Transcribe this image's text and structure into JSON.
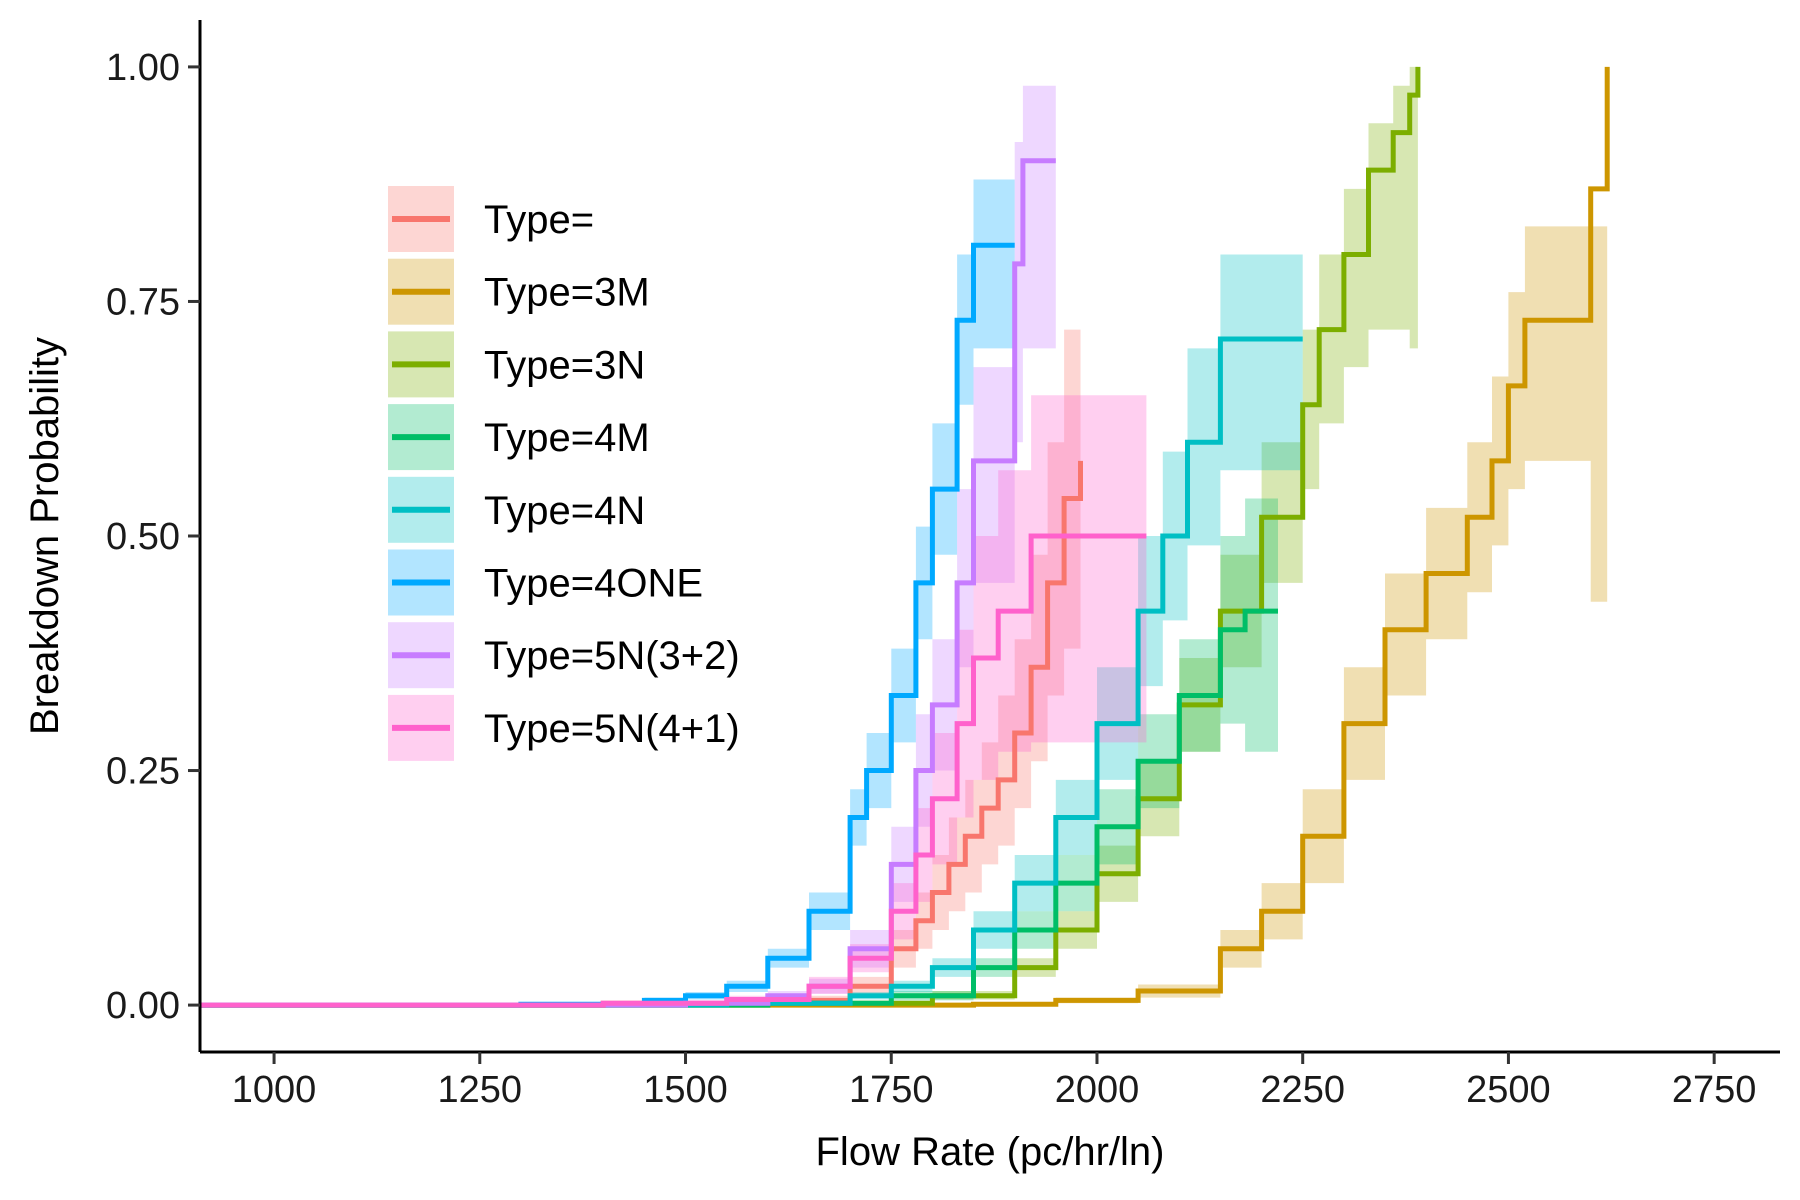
{
  "chart_data": {
    "type": "line",
    "title": "",
    "xlabel": "Flow Rate (pc/hr/ln)",
    "ylabel": "Breakdown Probability",
    "xlim": [
      910,
      2830
    ],
    "ylim": [
      -0.05,
      1.05
    ],
    "x_ticks": [
      1000,
      1250,
      1500,
      1750,
      2000,
      2250,
      2500,
      2750
    ],
    "y_ticks": [
      0,
      0.25,
      0.5,
      0.75,
      1.0
    ],
    "x_tick_labels": [
      "1000",
      "1250",
      "1500",
      "1750",
      "2000",
      "2250",
      "2500",
      "2750"
    ],
    "y_tick_labels": [
      "0.00",
      "0.25",
      "0.50",
      "0.75",
      "1.00"
    ],
    "grid": false,
    "legend_position": "top-left",
    "step": true,
    "series": [
      {
        "name": "Type=",
        "color": "#F8766D",
        "x": [
          910,
          1400,
          1600,
          1700,
          1750,
          1780,
          1800,
          1820,
          1840,
          1860,
          1880,
          1900,
          1920,
          1940,
          1960,
          1980
        ],
        "y": [
          0,
          0.002,
          0.005,
          0.02,
          0.06,
          0.09,
          0.12,
          0.15,
          0.18,
          0.21,
          0.24,
          0.29,
          0.36,
          0.45,
          0.54,
          0.58
        ],
        "lower": [
          0,
          0,
          0.002,
          0.01,
          0.04,
          0.06,
          0.08,
          0.1,
          0.12,
          0.15,
          0.17,
          0.21,
          0.26,
          0.33,
          0.38,
          0.4
        ],
        "upper": [
          0,
          0.004,
          0.01,
          0.03,
          0.08,
          0.12,
          0.16,
          0.2,
          0.24,
          0.28,
          0.33,
          0.39,
          0.48,
          0.6,
          0.72,
          0.75
        ]
      },
      {
        "name": "Type=3M",
        "color": "#CD9600",
        "x": [
          910,
          1850,
          1950,
          2050,
          2150,
          2200,
          2250,
          2300,
          2350,
          2400,
          2450,
          2480,
          2500,
          2520,
          2560,
          2600,
          2610,
          2620
        ],
        "y": [
          0,
          0.001,
          0.005,
          0.015,
          0.06,
          0.1,
          0.18,
          0.3,
          0.4,
          0.46,
          0.52,
          0.58,
          0.66,
          0.73,
          0.73,
          0.87,
          0.87,
          1.0
        ],
        "lower": [
          0,
          0,
          0.002,
          0.008,
          0.04,
          0.07,
          0.13,
          0.24,
          0.33,
          0.39,
          0.44,
          0.49,
          0.55,
          0.58,
          0.58,
          0.43,
          0.43,
          0.43
        ],
        "upper": [
          0,
          0.002,
          0.008,
          0.022,
          0.08,
          0.13,
          0.23,
          0.36,
          0.46,
          0.53,
          0.6,
          0.67,
          0.76,
          0.83,
          0.83,
          0.83,
          0.83,
          1.0
        ]
      },
      {
        "name": "Type=3N",
        "color": "#7CAE00",
        "x": [
          910,
          1600,
          1800,
          1900,
          1950,
          2000,
          2050,
          2100,
          2150,
          2200,
          2250,
          2270,
          2300,
          2330,
          2360,
          2380,
          2390
        ],
        "y": [
          0,
          0.002,
          0.01,
          0.04,
          0.08,
          0.14,
          0.22,
          0.32,
          0.42,
          0.52,
          0.64,
          0.72,
          0.8,
          0.89,
          0.93,
          0.97,
          1.0
        ],
        "lower": [
          0,
          0,
          0.006,
          0.03,
          0.06,
          0.11,
          0.18,
          0.27,
          0.36,
          0.45,
          0.55,
          0.62,
          0.68,
          0.72,
          0.72,
          0.7,
          0.7
        ],
        "upper": [
          0,
          0.004,
          0.015,
          0.05,
          0.1,
          0.17,
          0.26,
          0.37,
          0.48,
          0.6,
          0.72,
          0.8,
          0.87,
          0.94,
          0.98,
          1.0,
          1.0
        ]
      },
      {
        "name": "Type=4M",
        "color": "#00BE67",
        "x": [
          910,
          1600,
          1750,
          1850,
          1900,
          1950,
          2000,
          2050,
          2100,
          2150,
          2180,
          2220
        ],
        "y": [
          0,
          0.002,
          0.01,
          0.04,
          0.08,
          0.13,
          0.19,
          0.26,
          0.33,
          0.4,
          0.42,
          0.42
        ],
        "lower": [
          0,
          0,
          0.005,
          0.03,
          0.06,
          0.1,
          0.15,
          0.21,
          0.27,
          0.3,
          0.27,
          0.27
        ],
        "upper": [
          0,
          0.004,
          0.015,
          0.05,
          0.1,
          0.16,
          0.23,
          0.31,
          0.39,
          0.5,
          0.54,
          0.54
        ]
      },
      {
        "name": "Type=4N",
        "color": "#00BFC4",
        "x": [
          910,
          1550,
          1700,
          1750,
          1800,
          1850,
          1900,
          1950,
          2000,
          2050,
          2080,
          2110,
          2150,
          2250
        ],
        "y": [
          0,
          0.002,
          0.01,
          0.02,
          0.04,
          0.08,
          0.13,
          0.2,
          0.3,
          0.42,
          0.5,
          0.6,
          0.71,
          0.71
        ],
        "lower": [
          0,
          0,
          0.006,
          0.014,
          0.03,
          0.06,
          0.1,
          0.16,
          0.24,
          0.34,
          0.41,
          0.49,
          0.57,
          0.57
        ],
        "upper": [
          0,
          0.004,
          0.014,
          0.026,
          0.05,
          0.1,
          0.16,
          0.24,
          0.36,
          0.5,
          0.59,
          0.7,
          0.8,
          0.8
        ]
      },
      {
        "name": "Type=4ONE",
        "color": "#00A9FF",
        "x": [
          910,
          1300,
          1450,
          1500,
          1550,
          1600,
          1650,
          1700,
          1720,
          1750,
          1780,
          1800,
          1830,
          1850,
          1880,
          1900
        ],
        "y": [
          0,
          0.001,
          0.005,
          0.01,
          0.02,
          0.05,
          0.1,
          0.2,
          0.25,
          0.33,
          0.45,
          0.55,
          0.73,
          0.81,
          0.81,
          0.81
        ],
        "lower": [
          0,
          0,
          0.002,
          0.006,
          0.014,
          0.04,
          0.08,
          0.17,
          0.21,
          0.28,
          0.39,
          0.48,
          0.64,
          0.7,
          0.7,
          0.7
        ],
        "upper": [
          0,
          0.002,
          0.008,
          0.014,
          0.026,
          0.06,
          0.12,
          0.23,
          0.29,
          0.38,
          0.51,
          0.62,
          0.8,
          0.88,
          0.88,
          0.88
        ]
      },
      {
        "name": "Type=5N(3+2)",
        "color": "#C77CFF",
        "x": [
          910,
          1500,
          1600,
          1650,
          1700,
          1750,
          1780,
          1800,
          1830,
          1850,
          1870,
          1900,
          1910,
          1950
        ],
        "y": [
          0,
          0.002,
          0.01,
          0.02,
          0.06,
          0.15,
          0.25,
          0.32,
          0.45,
          0.58,
          0.58,
          0.79,
          0.9,
          0.9
        ],
        "lower": [
          0,
          0,
          0.005,
          0.012,
          0.04,
          0.11,
          0.19,
          0.25,
          0.36,
          0.45,
          0.45,
          0.6,
          0.7,
          0.7
        ],
        "upper": [
          0,
          0.004,
          0.015,
          0.028,
          0.08,
          0.19,
          0.31,
          0.39,
          0.55,
          0.68,
          0.68,
          0.92,
          0.98,
          0.98
        ]
      },
      {
        "name": "Type=5N(4+1)",
        "color": "#FF61CC",
        "x": [
          910,
          1400,
          1550,
          1650,
          1700,
          1750,
          1780,
          1800,
          1830,
          1850,
          1880,
          1920,
          2060
        ],
        "y": [
          0,
          0.002,
          0.006,
          0.02,
          0.05,
          0.1,
          0.16,
          0.22,
          0.3,
          0.37,
          0.42,
          0.5,
          0.5
        ],
        "lower": [
          0,
          0,
          0.003,
          0.012,
          0.035,
          0.07,
          0.11,
          0.15,
          0.2,
          0.24,
          0.27,
          0.28,
          0.28
        ],
        "upper": [
          0,
          0.004,
          0.01,
          0.03,
          0.065,
          0.13,
          0.21,
          0.29,
          0.4,
          0.5,
          0.57,
          0.65,
          0.65
        ]
      }
    ]
  }
}
